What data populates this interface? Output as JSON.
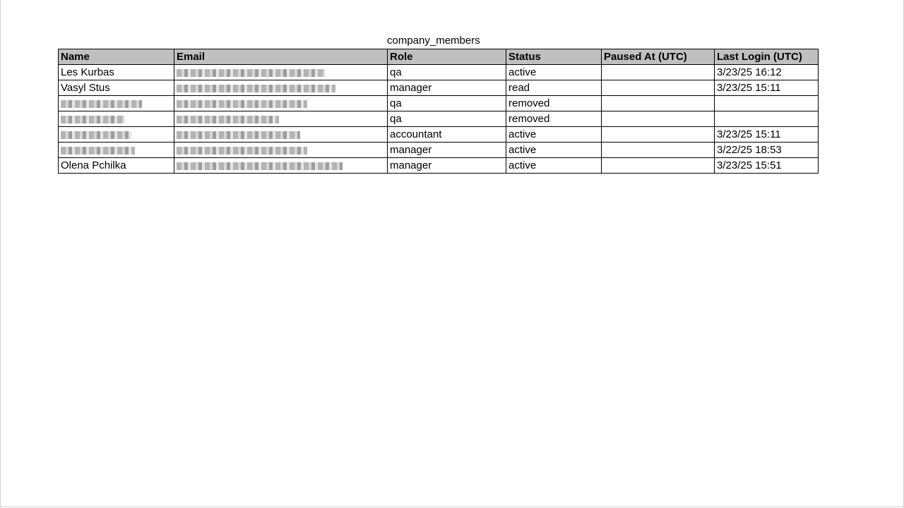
{
  "title": "company_members",
  "columns": [
    "Name",
    "Email",
    "Role",
    "Status",
    "Paused At (UTC)",
    "Last Login (UTC)"
  ],
  "rows": [
    {
      "name": "Les Kurbas",
      "name_redacted": false,
      "email_redacted": true,
      "role": "qa",
      "status": "active",
      "paused_at": "",
      "last_login": "3/23/25 16:12"
    },
    {
      "name": "Vasyl Stus",
      "name_redacted": false,
      "email_redacted": true,
      "role": "manager",
      "status": "read",
      "paused_at": "",
      "last_login": "3/23/25 15:11"
    },
    {
      "name": "",
      "name_redacted": true,
      "email_redacted": true,
      "role": "qa",
      "status": "removed",
      "paused_at": "",
      "last_login": ""
    },
    {
      "name": "",
      "name_redacted": true,
      "email_redacted": true,
      "role": "qa",
      "status": "removed",
      "paused_at": "",
      "last_login": ""
    },
    {
      "name": "",
      "name_redacted": true,
      "email_redacted": true,
      "role": "accountant",
      "status": "active",
      "paused_at": "",
      "last_login": "3/23/25 15:11"
    },
    {
      "name": "",
      "name_redacted": true,
      "email_redacted": true,
      "role": "manager",
      "status": "active",
      "paused_at": "",
      "last_login": "3/22/25 18:53"
    },
    {
      "name": "Olena Pchilka",
      "name_redacted": false,
      "email_redacted": true,
      "role": "manager",
      "status": "active",
      "paused_at": "",
      "last_login": "3/23/25 15:51"
    }
  ]
}
